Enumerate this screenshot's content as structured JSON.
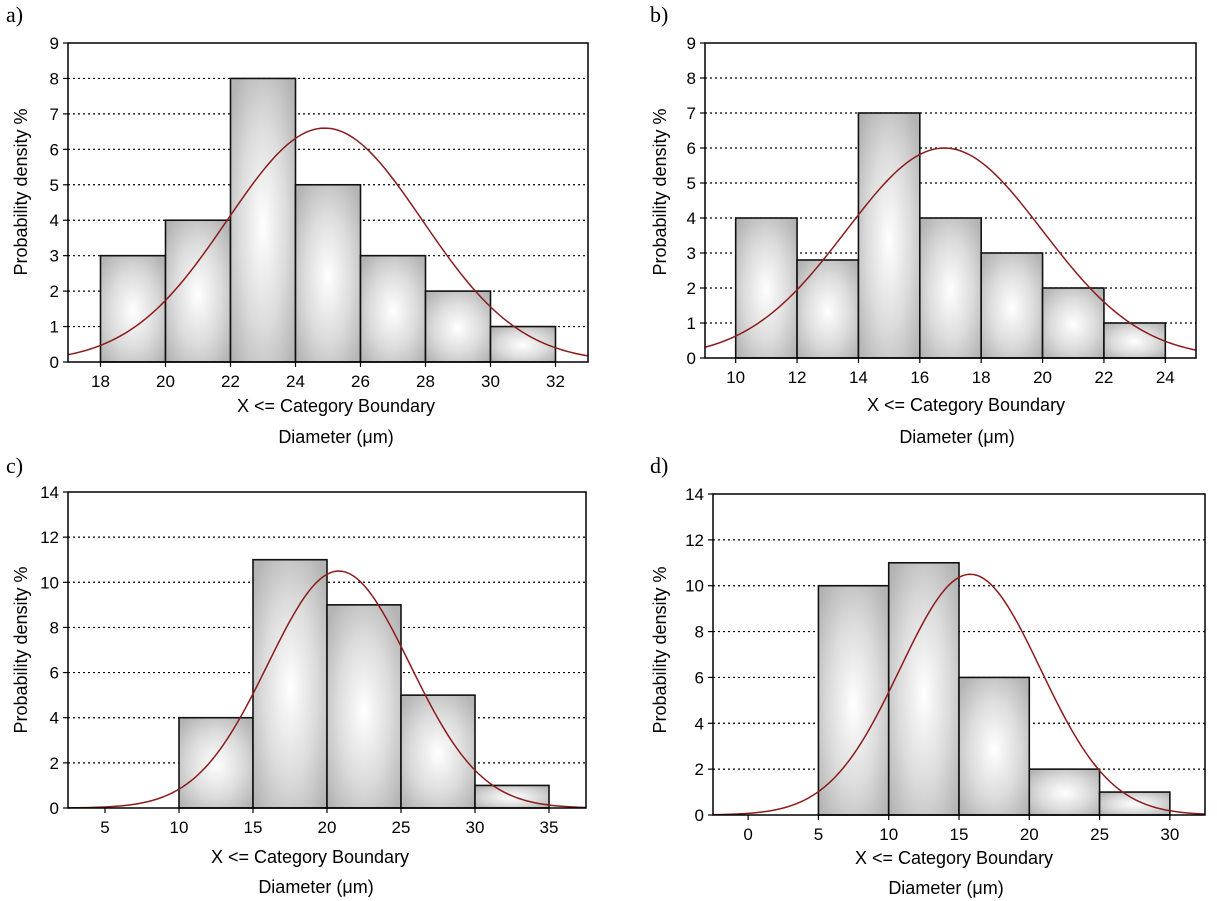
{
  "chart_data": [
    {
      "panel": "a)",
      "type": "bar",
      "bin_edges": [
        18,
        20,
        22,
        24,
        26,
        28,
        30,
        32
      ],
      "values": [
        3,
        4,
        8,
        5,
        3,
        2,
        1
      ],
      "x_ticks": [
        "18",
        "20",
        "22",
        "24",
        "26",
        "28",
        "30",
        "32"
      ],
      "y_ticks": [
        "0",
        "1",
        "2",
        "3",
        "4",
        "5",
        "6",
        "7",
        "8",
        "9"
      ],
      "xlim": [
        17,
        33
      ],
      "ylim": [
        0,
        9
      ],
      "xlabel": "X <= Category Boundary",
      "xlabel2": "Diameter (μm)",
      "ylabel": "Probability density %",
      "fit_curve": {
        "type": "normal",
        "peak_x": 24.9,
        "peak_y": 6.6,
        "sd": 3.0
      },
      "grid": "horizontal dotted"
    },
    {
      "panel": "b)",
      "type": "bar",
      "bin_edges": [
        10,
        12,
        14,
        16,
        18,
        20,
        22,
        24
      ],
      "values": [
        4,
        2.8,
        7,
        4,
        3,
        2,
        1
      ],
      "x_ticks": [
        "10",
        "12",
        "14",
        "16",
        "18",
        "20",
        "22",
        "24"
      ],
      "y_ticks": [
        "0",
        "1",
        "2",
        "3",
        "4",
        "5",
        "6",
        "7",
        "8",
        "9"
      ],
      "xlim": [
        9,
        25
      ],
      "ylim": [
        0,
        9
      ],
      "xlabel": "X <= Category Boundary",
      "xlabel2": "Diameter (μm)",
      "ylabel": "Probability density %",
      "fit_curve": {
        "type": "normal",
        "peak_x": 16.8,
        "peak_y": 6.0,
        "sd": 3.2
      },
      "grid": "horizontal dotted"
    },
    {
      "panel": "c)",
      "type": "bar",
      "bin_edges": [
        10,
        15,
        20,
        25,
        30,
        35
      ],
      "values": [
        4,
        11,
        9,
        5,
        1
      ],
      "x_ticks": [
        "5",
        "10",
        "15",
        "20",
        "25",
        "30",
        "35"
      ],
      "x_tick_values": [
        5,
        10,
        15,
        20,
        25,
        30,
        35
      ],
      "y_ticks": [
        "0",
        "2",
        "4",
        "6",
        "8",
        "10",
        "12",
        "14"
      ],
      "xlim": [
        2.5,
        37.5
      ],
      "ylim": [
        0,
        14
      ],
      "xlabel": "X <= Category Boundary",
      "xlabel2": "Diameter (μm)",
      "ylabel": "Probability density %",
      "fit_curve": {
        "type": "normal",
        "peak_x": 20.8,
        "peak_y": 10.5,
        "sd": 4.8
      },
      "grid": "horizontal dotted"
    },
    {
      "panel": "d)",
      "type": "bar",
      "bin_edges": [
        5,
        10,
        15,
        20,
        25,
        30
      ],
      "values": [
        10,
        11,
        6,
        2,
        1
      ],
      "x_ticks": [
        "0",
        "5",
        "10",
        "15",
        "20",
        "25",
        "30"
      ],
      "x_tick_values": [
        0,
        5,
        10,
        15,
        20,
        25,
        30
      ],
      "y_ticks": [
        "0",
        "2",
        "4",
        "6",
        "8",
        "10",
        "12",
        "14"
      ],
      "xlim": [
        -2.5,
        32.5
      ],
      "ylim": [
        0,
        14
      ],
      "xlabel": "X <= Category Boundary",
      "xlabel2": "Diameter (μm)",
      "ylabel": "Probability density %",
      "fit_curve": {
        "type": "normal",
        "peak_x": 15.8,
        "peak_y": 10.5,
        "sd": 5.0
      },
      "grid": "horizontal dotted"
    }
  ],
  "colors": {
    "curve": "#8b1c1c",
    "bar_edge": "#111111",
    "bar_light": "#ffffff",
    "bar_dark": "#b9b9b9"
  }
}
